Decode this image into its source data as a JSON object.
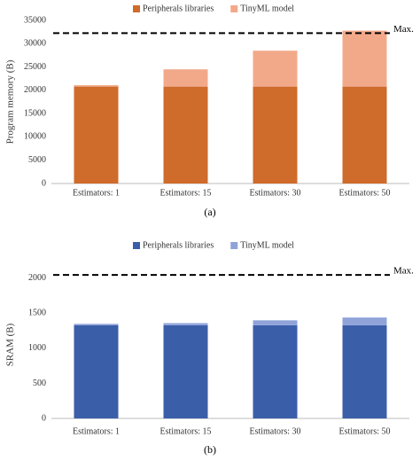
{
  "chart_data": [
    {
      "type": "bar",
      "stacked": true,
      "y_label": "Program memory (B)",
      "caption": "(a)",
      "categories": [
        "Estimators: 1",
        "Estimators: 15",
        "Estimators: 30",
        "Estimators: 50"
      ],
      "series": [
        {
          "name": "Peripherals libraries",
          "color": "#cf6b2b",
          "values": [
            20800,
            20800,
            20800,
            20800
          ]
        },
        {
          "name": "TinyML model",
          "color": "#f2a98a",
          "values": [
            300,
            3700,
            7700,
            12000
          ]
        }
      ],
      "ylim": [
        0,
        35000
      ],
      "yticks": [
        0,
        5000,
        10000,
        15000,
        20000,
        25000,
        30000,
        35000
      ],
      "max_line": {
        "value": 32256,
        "label": "Max."
      }
    },
    {
      "type": "bar",
      "stacked": true,
      "y_label": "SRAM (B)",
      "caption": "(b)",
      "categories": [
        "Estimators: 1",
        "Estimators: 15",
        "Estimators: 30",
        "Estimators: 50"
      ],
      "series": [
        {
          "name": "Peripherals libraries",
          "color": "#3b5ea8",
          "values": [
            1330,
            1330,
            1330,
            1330
          ]
        },
        {
          "name": "TinyML model",
          "color": "#8fa3d9",
          "values": [
            20,
            30,
            70,
            110
          ]
        }
      ],
      "ylim": [
        0,
        2100
      ],
      "yticks": [
        0,
        500,
        1000,
        1500,
        2000
      ],
      "max_line": {
        "value": 2048,
        "label": "Max."
      }
    }
  ]
}
